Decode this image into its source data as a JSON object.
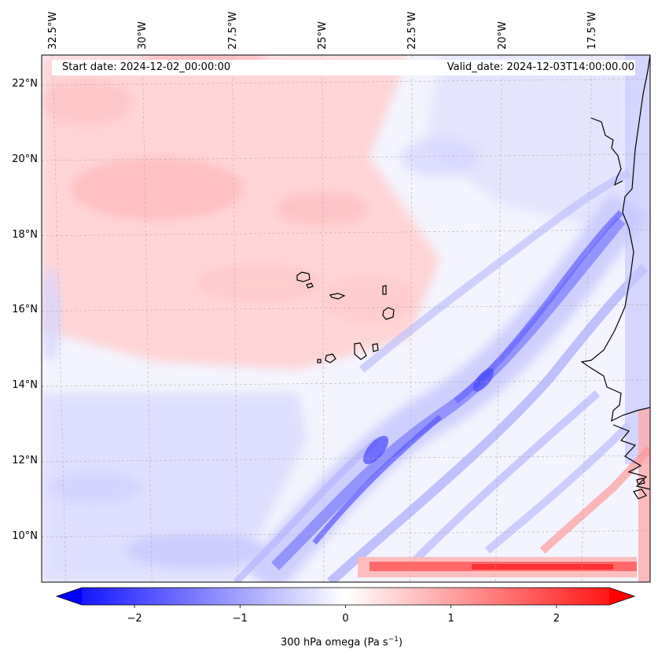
{
  "map": {
    "variable": "300 hPa omega",
    "start_date_label": "Start date: 2024-12-02_00:00:00",
    "valid_date_label": "Valid_date: 2024-12-03T14:00:00.00",
    "extent": {
      "lon_min": -33.0,
      "lon_max": -15.7,
      "lat_min": 8.8,
      "lat_max": 22.8
    },
    "lon_ticks": [
      {
        "value": -32.5,
        "label": "32.5°W"
      },
      {
        "value": -30.0,
        "label": "30°W"
      },
      {
        "value": -27.5,
        "label": "27.5°W"
      },
      {
        "value": -25.0,
        "label": "25°W"
      },
      {
        "value": -22.5,
        "label": "22.5°W"
      },
      {
        "value": -20.0,
        "label": "20°W"
      },
      {
        "value": -17.5,
        "label": "17.5°W"
      }
    ],
    "lat_ticks": [
      {
        "value": 22,
        "label": "22°N"
      },
      {
        "value": 20,
        "label": "20°N"
      },
      {
        "value": 18,
        "label": "18°N"
      },
      {
        "value": 16,
        "label": "16°N"
      },
      {
        "value": 14,
        "label": "14°N"
      },
      {
        "value": 12,
        "label": "12°N"
      },
      {
        "value": 10,
        "label": "10°N"
      }
    ],
    "colors": {
      "negative": "#0000ff",
      "neutral": "#ffffff",
      "positive": "#ff0000",
      "coast": "#000000",
      "grid": "#b0b0b0"
    }
  },
  "colorbar": {
    "min": -2.7,
    "max": 2.7,
    "label_main": "300 hPa omega (Pa s",
    "label_exp": "−1",
    "label_end": ")",
    "ticks": [
      {
        "value": -2,
        "label": "−2"
      },
      {
        "value": -1,
        "label": "−1"
      },
      {
        "value": 0,
        "label": "0"
      },
      {
        "value": 1,
        "label": "1"
      },
      {
        "value": 2,
        "label": "2"
      }
    ]
  }
}
